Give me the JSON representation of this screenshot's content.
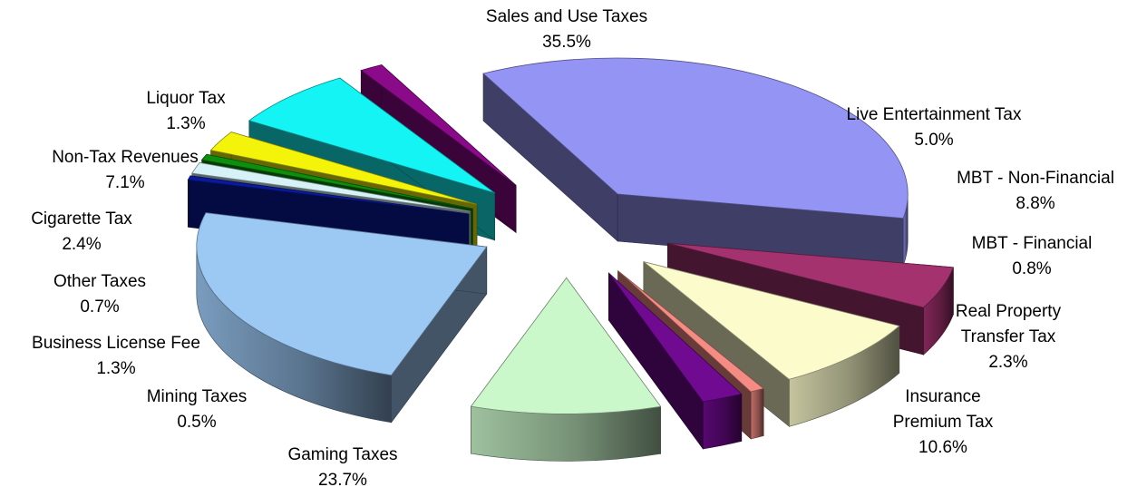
{
  "chart_data": {
    "type": "pie",
    "slices": [
      {
        "name": "Sales and Use Taxes",
        "value": 35.5,
        "display": "35.5%",
        "color": "#9494f4"
      },
      {
        "name": "Live Entertainment Tax",
        "value": 5.0,
        "display": "5.0%",
        "color": "#a3326f"
      },
      {
        "name": "MBT - Non-Financial",
        "value": 8.8,
        "display": "8.8%",
        "color": "#fbfbcc"
      },
      {
        "name": "MBT - Financial",
        "value": 0.8,
        "display": "0.8%",
        "color": "#f58c84"
      },
      {
        "name": "Real Property Transfer Tax",
        "value": 2.3,
        "display": "2.3%",
        "color": "#700a90"
      },
      {
        "name": "Insurance Premium  Tax",
        "value": 10.6,
        "display": "10.6%",
        "color": "#cbf8cb"
      },
      {
        "name": "Gaming Taxes",
        "value": 23.7,
        "display": "23.7%",
        "color": "#9cc8f4"
      },
      {
        "name": "Mining Taxes",
        "value": 0.5,
        "display": "0.5%",
        "color": "#0a1a9c"
      },
      {
        "name": "Business License Fee",
        "value": 1.3,
        "display": "1.3%",
        "color": "#d6f2f6"
      },
      {
        "name": "Other Taxes",
        "value": 0.7,
        "display": "0.7%",
        "color": "#0c8f0c"
      },
      {
        "name": "Cigarette Tax",
        "value": 2.4,
        "display": "2.4%",
        "color": "#f4f40a"
      },
      {
        "name": "Non-Tax Revenues",
        "value": 7.1,
        "display": "7.1%",
        "color": "#14f4f4"
      },
      {
        "name": "Liquor Tax",
        "value": 1.3,
        "display": "1.3%",
        "color": "#8a0a8a"
      }
    ]
  },
  "labels": [
    {
      "lines": [
        "Sales and Use Taxes",
        "35.5%"
      ]
    },
    {
      "lines": [
        "Live Entertainment Tax",
        "5.0%"
      ]
    },
    {
      "lines": [
        "MBT - Non-Financial",
        "8.8%"
      ]
    },
    {
      "lines": [
        "MBT - Financial",
        "0.8%"
      ]
    },
    {
      "lines": [
        "Real Property",
        "Transfer Tax",
        "2.3%"
      ]
    },
    {
      "lines": [
        "Insurance",
        "Premium  Tax",
        "10.6%"
      ]
    },
    {
      "lines": [
        "Gaming Taxes",
        "23.7%"
      ]
    },
    {
      "lines": [
        "Mining Taxes",
        "0.5%"
      ]
    },
    {
      "lines": [
        "Business License Fee",
        "1.3%"
      ]
    },
    {
      "lines": [
        "Other Taxes",
        "0.7%"
      ]
    },
    {
      "lines": [
        "Cigarette Tax",
        "2.4%"
      ]
    },
    {
      "lines": [
        "Non-Tax Revenues",
        "7.1%"
      ]
    },
    {
      "lines": [
        "Liquor Tax",
        "1.3%"
      ]
    }
  ]
}
